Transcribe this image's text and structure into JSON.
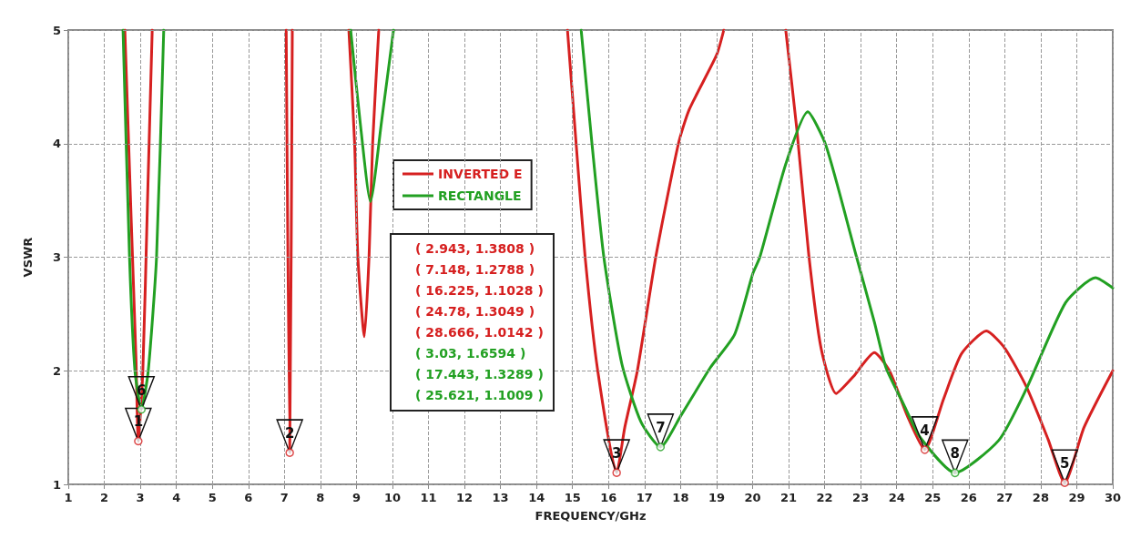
{
  "chart_data": {
    "type": "line",
    "xlabel": "FREQUENCY/GHz",
    "ylabel": "VSWR",
    "xlim": [
      1,
      30
    ],
    "xticks": [
      1,
      2,
      3,
      4,
      5,
      6,
      7,
      8,
      9,
      10,
      11,
      12,
      13,
      14,
      15,
      16,
      17,
      18,
      19,
      20,
      21,
      22,
      23,
      24,
      25,
      26,
      27,
      28,
      29,
      30
    ],
    "ylim": [
      1,
      5
    ],
    "yticks": [
      1,
      2,
      3,
      4,
      5
    ],
    "grid": true,
    "legend": "top left",
    "marker": "none",
    "line_style": "solid",
    "series": [
      {
        "name": "INVERTED E",
        "color": "#d62020",
        "x": [
          2.57,
          2.75,
          2.88,
          2.943,
          3.07,
          3.2,
          3.33,
          5,
          7.05,
          7.148,
          7.22,
          8,
          8.79,
          8.95,
          9.04,
          9.22,
          9.35,
          9.45,
          9.62,
          12,
          14.86,
          15.1,
          15.35,
          15.7,
          16.225,
          16.45,
          16.8,
          17.31,
          17.94,
          18.24,
          19.0,
          19.2,
          20,
          20.92,
          21.23,
          21.56,
          21.9,
          22.32,
          22.8,
          23.38,
          23.8,
          24.3,
          24.78,
          25.3,
          25.8,
          26.49,
          27.0,
          27.6,
          28.2,
          28.666,
          29.2,
          30
        ],
        "values": [
          5,
          3.3,
          2.1,
          1.3808,
          2.0,
          3.5,
          5,
          null,
          5,
          1.2788,
          5,
          null,
          5,
          4.0,
          3.0,
          2.3,
          3.0,
          4.0,
          5,
          null,
          5,
          4.0,
          3.0,
          2.0,
          1.1028,
          1.5,
          2.0,
          3.0,
          4.0,
          4.3,
          4.78,
          5,
          null,
          5,
          4.12,
          3.02,
          2.2,
          1.8,
          1.95,
          2.16,
          2.0,
          1.6,
          1.3049,
          1.75,
          2.15,
          2.35,
          2.2,
          1.86,
          1.4,
          1.0142,
          1.5,
          2.0
        ]
      },
      {
        "name": "RECTANGLE",
        "color": "#22a022",
        "x": [
          2.52,
          2.7,
          2.85,
          3.03,
          3.22,
          3.45,
          3.65,
          6,
          8.84,
          9.1,
          9.39,
          9.7,
          10.03,
          12,
          15.24,
          15.54,
          15.87,
          16.37,
          16.9,
          17.443,
          18.0,
          18.83,
          19.5,
          20.0,
          20.2,
          20.92,
          21.53,
          22.04,
          22.87,
          23.38,
          23.7,
          24.2,
          24.64,
          25.621,
          26.84,
          27.6,
          28.69,
          29.52,
          30
        ],
        "values": [
          5,
          3.0,
          2.0,
          1.6594,
          2.0,
          3.0,
          5,
          null,
          5,
          4.2,
          3.49,
          4.2,
          5,
          null,
          5,
          4.0,
          3.0,
          2.06,
          1.55,
          1.3289,
          1.6,
          2.03,
          2.32,
          2.85,
          3.0,
          3.82,
          4.28,
          3.98,
          3.02,
          2.43,
          2.03,
          1.7,
          1.42,
          1.1009,
          1.39,
          1.84,
          2.6,
          2.82,
          2.73
        ]
      },
      {
        "type": "scatter",
        "marker": "circle",
        "color": "#d62020",
        "x": [
          2.943,
          7.148,
          16.225,
          24.78,
          28.666
        ],
        "values": [
          1.3808,
          1.2788,
          1.1028,
          1.3049,
          1.0142
        ]
      },
      {
        "type": "scatter",
        "marker": "circle",
        "color": "#22a022",
        "x": [
          3.03,
          17.443,
          25.621
        ],
        "values": [
          1.6594,
          1.3289,
          1.1009
        ]
      }
    ],
    "annotations": [
      {
        "text": "1",
        "x": 2.943,
        "y": 1.3808
      },
      {
        "text": "2",
        "x": 7.148,
        "y": 1.2788
      },
      {
        "text": "3",
        "x": 16.225,
        "y": 1.1028
      },
      {
        "text": "4",
        "x": 24.78,
        "y": 1.3049
      },
      {
        "text": "5",
        "x": 28.666,
        "y": 1.0142
      },
      {
        "text": "6",
        "x": 3.03,
        "y": 1.6594
      },
      {
        "text": "7",
        "x": 17.443,
        "y": 1.3289
      },
      {
        "text": "8",
        "x": 25.621,
        "y": 1.1009
      },
      "( 2.943, 1.3808 )",
      "( 7.148, 1.2788 )",
      "( 16.225, 1.1028 )",
      "( 24.78, 1.3049 )",
      "( 28.666, 1.0142 )",
      "( 3.03, 1.6594 )",
      "( 17.443, 1.3289 )",
      "( 25.621, 1.1009 )"
    ]
  }
}
